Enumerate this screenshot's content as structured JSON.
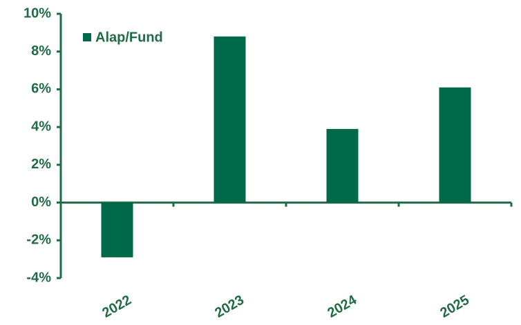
{
  "chart_data": {
    "type": "bar",
    "categories": [
      "2022",
      "2023",
      "2024",
      "2025"
    ],
    "series": [
      {
        "name": "Alap/Fund",
        "color": "#00694a",
        "values": [
          -2.9,
          8.8,
          3.9,
          6.1
        ]
      }
    ],
    "ylim": [
      -4,
      10
    ],
    "yticks": [
      {
        "value": -4,
        "label": "-4%"
      },
      {
        "value": -2,
        "label": "-2%"
      },
      {
        "value": 0,
        "label": "0%"
      },
      {
        "value": 2,
        "label": "2%"
      },
      {
        "value": 4,
        "label": "4%"
      },
      {
        "value": 6,
        "label": "6%"
      },
      {
        "value": 8,
        "label": "8%"
      },
      {
        "value": 10,
        "label": "10%"
      }
    ],
    "grid": false,
    "legend": "top-left"
  }
}
